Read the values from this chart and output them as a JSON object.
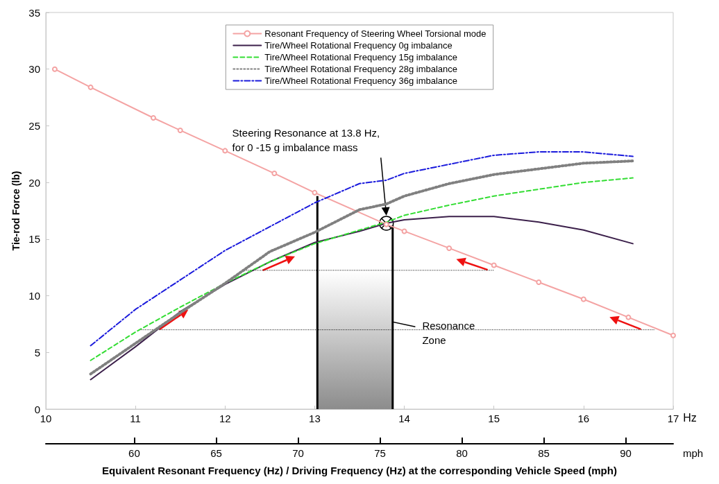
{
  "chart_data": {
    "type": "line",
    "ylabel": "Tie-rod Force (lb)",
    "xlabel": "Hz",
    "x2label": "mph",
    "xlim": [
      10,
      17
    ],
    "xticks": [
      10,
      11,
      12,
      13,
      14,
      15,
      16,
      17
    ],
    "x2lim": [
      54.6,
      92.9
    ],
    "x2ticks": [
      60,
      65,
      70,
      75,
      80,
      85,
      90
    ],
    "ylim": [
      0,
      35
    ],
    "yticks": [
      0,
      5,
      10,
      15,
      20,
      25,
      30,
      35
    ],
    "grid": false,
    "legend": "top",
    "annotations": [
      "Steering Resonance at 13.8 Hz,\nfor 0 -15 g imbalance mass",
      "Resonance\nZone",
      "Equivalent Resonant Frequency (Hz) / Driving Frequency (Hz) at the corresponding Vehicle Speed (mph)"
    ],
    "series": [
      {
        "name": "Resonant Frequency of Steering Wheel Torsional mode",
        "type": "line",
        "color": "#f4a3a3",
        "marker": "circle",
        "line_style": "solid",
        "x": [
          10.1,
          10.5,
          11.2,
          11.5,
          12,
          12.55,
          13,
          13.8,
          14,
          14.5,
          15,
          15.5,
          16,
          16.5,
          17
        ],
        "values": [
          30,
          28.4,
          25.7,
          24.6,
          22.8,
          20.8,
          19.1,
          16.3,
          15.7,
          14.2,
          12.7,
          11.2,
          9.7,
          8.1,
          6.5
        ]
      },
      {
        "name": "Tire/Wheel Rotational Frequency 0g imbalance",
        "type": "line",
        "color": "#3b1f4a",
        "marker": "none",
        "line_style": "solid",
        "x": [
          10.5,
          11,
          11.5,
          12,
          12.5,
          13,
          13.5,
          13.8,
          14,
          14.5,
          15,
          15.5,
          16,
          16.55
        ],
        "values": [
          2.6,
          5.5,
          8.6,
          11.0,
          13.0,
          14.7,
          15.7,
          16.4,
          16.7,
          17.0,
          17.0,
          16.5,
          15.8,
          14.6
        ]
      },
      {
        "name": "Tire/Wheel Rotational Frequency 15g imbalance",
        "type": "line",
        "color": "#33dd33",
        "marker": "none",
        "line_style": "dashed",
        "x": [
          10.5,
          11,
          11.5,
          12,
          12.5,
          13,
          13.5,
          13.8,
          14,
          14.5,
          15,
          15.5,
          16,
          16.55
        ],
        "values": [
          4.3,
          6.8,
          9.0,
          11.1,
          13.0,
          14.6,
          15.8,
          16.5,
          17.1,
          18.0,
          18.8,
          19.4,
          20.0,
          20.4
        ]
      },
      {
        "name": "Tire/Wheel Rotational Frequency 28g imbalance",
        "type": "line",
        "color": "#808080",
        "marker": "none",
        "line_style": "dotted",
        "x": [
          10.5,
          11,
          11.5,
          12,
          12.5,
          13,
          13.5,
          13.8,
          14,
          14.5,
          15,
          15.5,
          16,
          16.55
        ],
        "values": [
          3.1,
          5.8,
          8.5,
          11.1,
          13.9,
          15.6,
          17.6,
          18.1,
          18.8,
          19.9,
          20.7,
          21.2,
          21.7,
          21.9
        ]
      },
      {
        "name": "Tire/Wheel Rotational Frequency 36g imbalance",
        "type": "line",
        "color": "#1a1adc",
        "marker": "none",
        "line_style": "dashdot",
        "x": [
          10.5,
          11,
          11.5,
          12,
          12.5,
          13,
          13.5,
          13.8,
          14,
          14.5,
          15,
          15.5,
          16,
          16.55
        ],
        "values": [
          5.6,
          8.8,
          11.4,
          14.0,
          16.1,
          18.2,
          19.9,
          20.2,
          20.8,
          21.6,
          22.4,
          22.7,
          22.7,
          22.3
        ]
      },
      {
        "type": "area",
        "color": "#8c8c8c",
        "marker": "none",
        "x": [
          13.03,
          13.87
        ],
        "values": [
          12.2,
          12.2
        ]
      },
      {
        "type": "line",
        "color": "#000000",
        "marker": "none",
        "line_style": "solid",
        "x": [
          13.03,
          13.03
        ],
        "values": [
          0,
          18.8
        ]
      },
      {
        "type": "line",
        "color": "#000000",
        "marker": "none",
        "line_style": "solid",
        "x": [
          13.87,
          13.87
        ],
        "values": [
          0,
          16.2
        ]
      },
      {
        "type": "line",
        "color": "#000000",
        "marker": "none",
        "line_style": "dotted",
        "x": [
          12.2,
          15.0
        ],
        "values": [
          12.25,
          12.25
        ]
      },
      {
        "type": "line",
        "color": "#000000",
        "marker": "none",
        "line_style": "dotted",
        "x": [
          11.05,
          16.8
        ],
        "values": [
          7.0,
          7.0
        ]
      }
    ]
  }
}
